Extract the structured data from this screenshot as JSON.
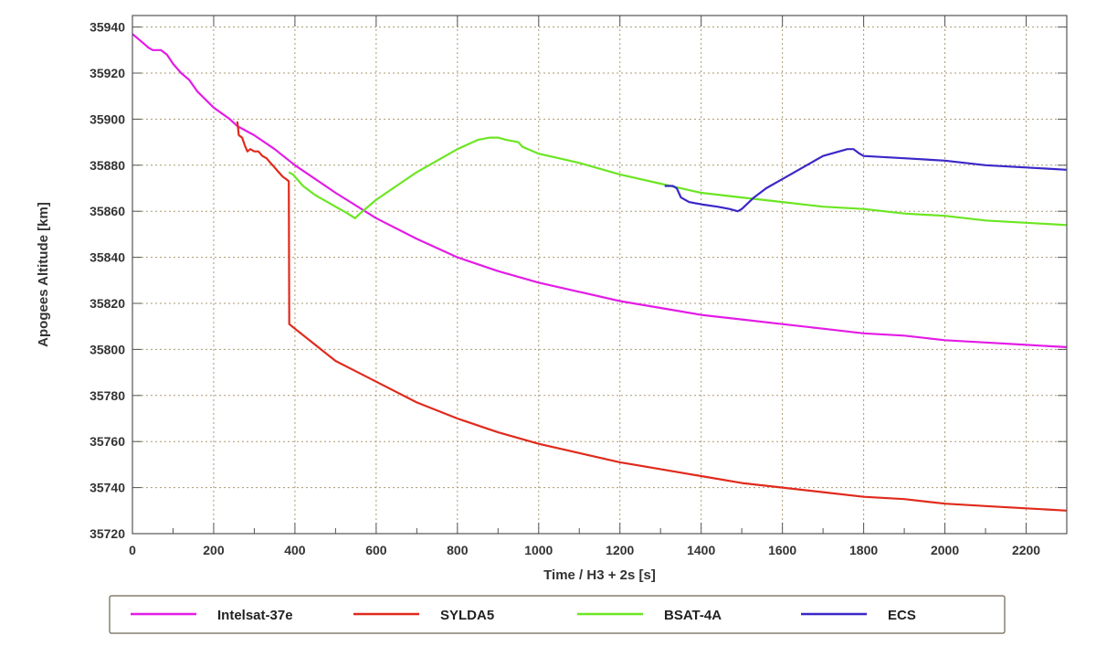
{
  "chart_data": {
    "type": "line",
    "title": "",
    "xlabel": "Time / H3 + 2s [s]",
    "ylabel": "Apogees Altitude [km]",
    "xlim": [
      0,
      2300
    ],
    "ylim": [
      35720,
      35945
    ],
    "xticks": [
      0,
      200,
      400,
      600,
      800,
      1000,
      1200,
      1400,
      1600,
      1800,
      2000,
      2200
    ],
    "yticks": [
      35720,
      35740,
      35760,
      35780,
      35800,
      35820,
      35840,
      35860,
      35880,
      35900,
      35920,
      35940
    ],
    "grid": true,
    "legend_position": "bottom",
    "series": [
      {
        "name": "Intelsat-37e",
        "color": "#e31ce6",
        "points": [
          [
            0,
            35937
          ],
          [
            20,
            35934
          ],
          [
            40,
            35931
          ],
          [
            50,
            35930
          ],
          [
            70,
            35930
          ],
          [
            85,
            35928
          ],
          [
            100,
            35924
          ],
          [
            120,
            35920
          ],
          [
            140,
            35917
          ],
          [
            160,
            35912
          ],
          [
            200,
            35905
          ],
          [
            240,
            35900
          ],
          [
            258,
            35897
          ],
          [
            300,
            35893
          ],
          [
            350,
            35887
          ],
          [
            400,
            35880
          ],
          [
            500,
            35868
          ],
          [
            600,
            35857
          ],
          [
            700,
            35848
          ],
          [
            800,
            35840
          ],
          [
            900,
            35834
          ],
          [
            1000,
            35829
          ],
          [
            1100,
            35825
          ],
          [
            1200,
            35821
          ],
          [
            1300,
            35818
          ],
          [
            1400,
            35815
          ],
          [
            1500,
            35813
          ],
          [
            1600,
            35811
          ],
          [
            1700,
            35809
          ],
          [
            1800,
            35807
          ],
          [
            1900,
            35806
          ],
          [
            2000,
            35804
          ],
          [
            2100,
            35803
          ],
          [
            2200,
            35802
          ],
          [
            2300,
            35801
          ]
        ]
      },
      {
        "name": "SYLDA5",
        "color": "#e02a1c",
        "points": [
          [
            258,
            35899
          ],
          [
            262,
            35893
          ],
          [
            270,
            35892
          ],
          [
            278,
            35888
          ],
          [
            283,
            35886
          ],
          [
            290,
            35887
          ],
          [
            300,
            35886
          ],
          [
            310,
            35886
          ],
          [
            320,
            35884
          ],
          [
            330,
            35883
          ],
          [
            340,
            35881
          ],
          [
            350,
            35879
          ],
          [
            360,
            35877
          ],
          [
            370,
            35875
          ],
          [
            378,
            35874
          ],
          [
            385,
            35873
          ],
          [
            386,
            35811
          ],
          [
            400,
            35809
          ],
          [
            450,
            35802
          ],
          [
            500,
            35795
          ],
          [
            600,
            35786
          ],
          [
            700,
            35777
          ],
          [
            800,
            35770
          ],
          [
            900,
            35764
          ],
          [
            1000,
            35759
          ],
          [
            1100,
            35755
          ],
          [
            1200,
            35751
          ],
          [
            1300,
            35748
          ],
          [
            1400,
            35745
          ],
          [
            1500,
            35742
          ],
          [
            1600,
            35740
          ],
          [
            1700,
            35738
          ],
          [
            1800,
            35736
          ],
          [
            1900,
            35735
          ],
          [
            2000,
            35733
          ],
          [
            2100,
            35732
          ],
          [
            2200,
            35731
          ],
          [
            2300,
            35730
          ]
        ]
      },
      {
        "name": "BSAT-4A",
        "color": "#6be622",
        "points": [
          [
            385,
            35877
          ],
          [
            395,
            35876
          ],
          [
            405,
            35874
          ],
          [
            420,
            35871
          ],
          [
            450,
            35867
          ],
          [
            500,
            35862
          ],
          [
            530,
            35859
          ],
          [
            548,
            35857
          ],
          [
            560,
            35859
          ],
          [
            600,
            35865
          ],
          [
            650,
            35871
          ],
          [
            700,
            35877
          ],
          [
            750,
            35882
          ],
          [
            800,
            35887
          ],
          [
            850,
            35891
          ],
          [
            880,
            35892
          ],
          [
            900,
            35892
          ],
          [
            920,
            35891
          ],
          [
            950,
            35890
          ],
          [
            960,
            35888
          ],
          [
            1000,
            35885
          ],
          [
            1050,
            35883
          ],
          [
            1100,
            35881
          ],
          [
            1200,
            35876
          ],
          [
            1300,
            35872
          ],
          [
            1400,
            35868
          ],
          [
            1500,
            35866
          ],
          [
            1600,
            35864
          ],
          [
            1700,
            35862
          ],
          [
            1800,
            35861
          ],
          [
            1900,
            35859
          ],
          [
            2000,
            35858
          ],
          [
            2100,
            35856
          ],
          [
            2200,
            35855
          ],
          [
            2300,
            35854
          ]
        ]
      },
      {
        "name": "ECS",
        "color": "#3b27c8",
        "points": [
          [
            1310,
            35871
          ],
          [
            1330,
            35871
          ],
          [
            1340,
            35870
          ],
          [
            1350,
            35866
          ],
          [
            1370,
            35864
          ],
          [
            1400,
            35863
          ],
          [
            1440,
            35862
          ],
          [
            1470,
            35861
          ],
          [
            1490,
            35860
          ],
          [
            1500,
            35861
          ],
          [
            1530,
            35866
          ],
          [
            1560,
            35870
          ],
          [
            1600,
            35874
          ],
          [
            1650,
            35879
          ],
          [
            1700,
            35884
          ],
          [
            1740,
            35886
          ],
          [
            1760,
            35887
          ],
          [
            1775,
            35887
          ],
          [
            1790,
            35885
          ],
          [
            1800,
            35884
          ],
          [
            1900,
            35883
          ],
          [
            2000,
            35882
          ],
          [
            2100,
            35880
          ],
          [
            2200,
            35879
          ],
          [
            2300,
            35878
          ]
        ]
      }
    ]
  }
}
